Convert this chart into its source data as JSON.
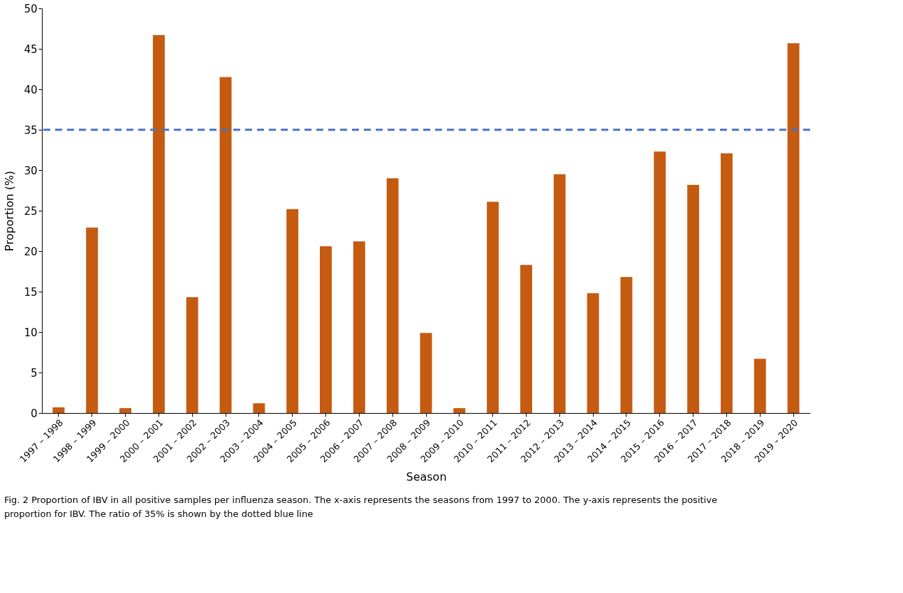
{
  "chart_data": {
    "type": "bar",
    "categories": [
      "1997 – 1998",
      "1998 – 1999",
      "1999 – 2000",
      "2000 – 2001",
      "2001 – 2002",
      "2002 – 2003",
      "2003 – 2004",
      "2004 – 2005",
      "2005 – 2006",
      "2006 – 2007",
      "2007 – 2008",
      "2008 – 2009",
      "2009 – 2010",
      "2010 – 2011",
      "2011 – 2012",
      "2012 – 2013",
      "2013 – 2014",
      "2014 – 2015",
      "2015 – 2016",
      "2016 – 2017",
      "2017 – 2018",
      "2018 – 2019",
      "2019 – 2020"
    ],
    "values": [
      0.7,
      22.9,
      0.6,
      46.7,
      14.3,
      41.5,
      1.2,
      25.2,
      20.6,
      21.2,
      29.0,
      9.9,
      0.6,
      26.1,
      18.3,
      29.5,
      14.8,
      16.8,
      32.3,
      28.2,
      32.1,
      6.7,
      45.7
    ],
    "color": "#c55a11",
    "xlabel": "Season",
    "ylabel": "Proportion (%)",
    "ylim": [
      0,
      50
    ],
    "yticks": [
      0,
      5,
      10,
      15,
      20,
      25,
      30,
      35,
      40,
      45,
      50
    ],
    "grid": false,
    "ref_lines": [
      {
        "axis": "y",
        "value": 35,
        "color": "#4472c4",
        "line_style": "dashed"
      }
    ],
    "annotations": [
      "Fig. 2  Proportion of IBV in all positive samples per influenza season. The x-axis represents the seasons from 1997 to 2000. The y-axis represents the positive proportion for IBV. The ratio of 35% is shown by the dotted blue line"
    ]
  }
}
